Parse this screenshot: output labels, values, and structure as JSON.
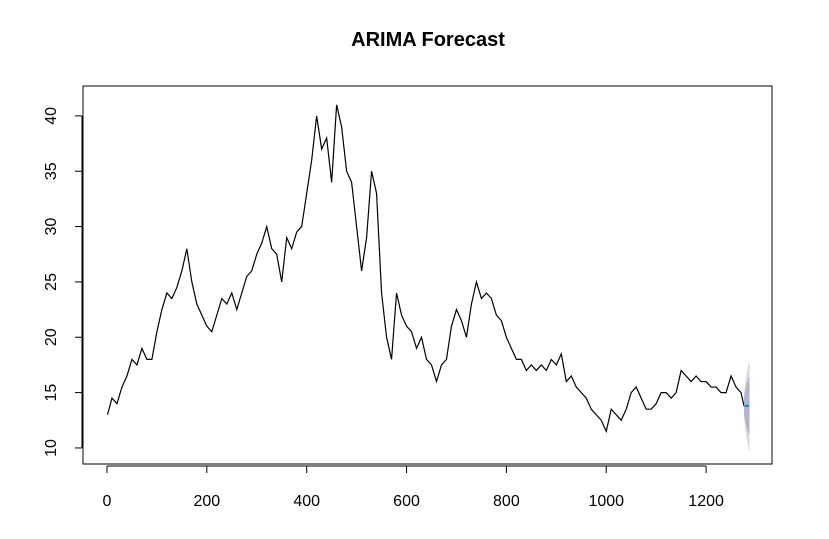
{
  "chart_data": {
    "type": "line",
    "title": "ARIMA Forecast",
    "xlim": [
      -48,
      1332
    ],
    "ylim": [
      8.55,
      42.7
    ],
    "xticks": [
      0,
      200,
      400,
      600,
      800,
      1000,
      1200
    ],
    "yticks": [
      10,
      15,
      20,
      25,
      30,
      35,
      40
    ],
    "series": [
      {
        "color": "#000000",
        "x": [
          1,
          10,
          20,
          30,
          40,
          50,
          60,
          70,
          80,
          90,
          100,
          110,
          120,
          130,
          140,
          150,
          160,
          170,
          180,
          190,
          200,
          210,
          220,
          230,
          240,
          250,
          260,
          270,
          280,
          290,
          300,
          310,
          320,
          330,
          340,
          350,
          360,
          370,
          380,
          390,
          400,
          410,
          420,
          430,
          440,
          450,
          460,
          470,
          480,
          490,
          500,
          510,
          520,
          530,
          540,
          550,
          560,
          570,
          580,
          590,
          600,
          610,
          620,
          630,
          640,
          650,
          660,
          670,
          680,
          690,
          700,
          710,
          720,
          730,
          740,
          750,
          760,
          770,
          780,
          790,
          800,
          810,
          820,
          830,
          840,
          850,
          860,
          870,
          880,
          890,
          900,
          910,
          920,
          930,
          940,
          950,
          960,
          970,
          980,
          990,
          1000,
          1010,
          1020,
          1030,
          1040,
          1050,
          1060,
          1070,
          1080,
          1090,
          1100,
          1110,
          1120,
          1130,
          1140,
          1150,
          1160,
          1170,
          1180,
          1190,
          1200,
          1210,
          1220,
          1230,
          1240,
          1250,
          1260,
          1270,
          1276
        ],
        "values": [
          13,
          14.5,
          14,
          15.5,
          16.5,
          18,
          17.5,
          19,
          18,
          18,
          20.5,
          22.5,
          24,
          23.5,
          24.5,
          26,
          28,
          25,
          23,
          22,
          21,
          20.5,
          22,
          23.5,
          23,
          24,
          22.5,
          24,
          25.5,
          26,
          27.5,
          28.5,
          30,
          28,
          27.5,
          25,
          29,
          28,
          29.5,
          30,
          33,
          36,
          40,
          37,
          38,
          34,
          41,
          39,
          35,
          34,
          30,
          26,
          29,
          35,
          33,
          24,
          20,
          18,
          24,
          22,
          21,
          20.5,
          19,
          20,
          18,
          17.5,
          16,
          17.5,
          18,
          21,
          22.5,
          21.5,
          20,
          23,
          25,
          23.5,
          24,
          23.5,
          22,
          21.5,
          20,
          19,
          18,
          18,
          17,
          17.5,
          17,
          17.5,
          17,
          18,
          17.5,
          18.5,
          16,
          16.5,
          15.5,
          15,
          14.5,
          13.5,
          13,
          12.5,
          11.5,
          13.5,
          13,
          12.5,
          13.5,
          15,
          15.5,
          14.5,
          13.5,
          13.5,
          14,
          15,
          15,
          14.5,
          15,
          17,
          16.5,
          16,
          16.5,
          16,
          16,
          15.5,
          15.5,
          15,
          15,
          16.5,
          15.5,
          15,
          13.8
        ]
      },
      {
        "color": "#0080ff",
        "x": [
          1277,
          1278,
          1279,
          1280,
          1281,
          1282,
          1283,
          1284,
          1285,
          1286
        ],
        "values": [
          13.8,
          13.8,
          13.8,
          13.8,
          13.8,
          13.8,
          13.8,
          13.8,
          13.8,
          13.8
        ],
        "lower95": [
          12.54,
          12.02,
          11.62,
          11.28,
          10.98,
          10.71,
          10.47,
          10.24,
          10.02,
          9.82
        ],
        "upper95": [
          15.06,
          15.58,
          15.98,
          16.32,
          16.62,
          16.89,
          17.13,
          17.36,
          17.58,
          17.78
        ],
        "lower80": [
          12.98,
          12.64,
          12.38,
          12.16,
          11.97,
          11.79,
          11.63,
          11.48,
          11.34,
          11.21
        ],
        "upper80": [
          14.62,
          14.96,
          15.22,
          15.44,
          15.63,
          15.81,
          15.97,
          16.12,
          16.26,
          16.39
        ],
        "color95": "#dbdbdf",
        "color80": "#b1b5ce"
      }
    ]
  }
}
